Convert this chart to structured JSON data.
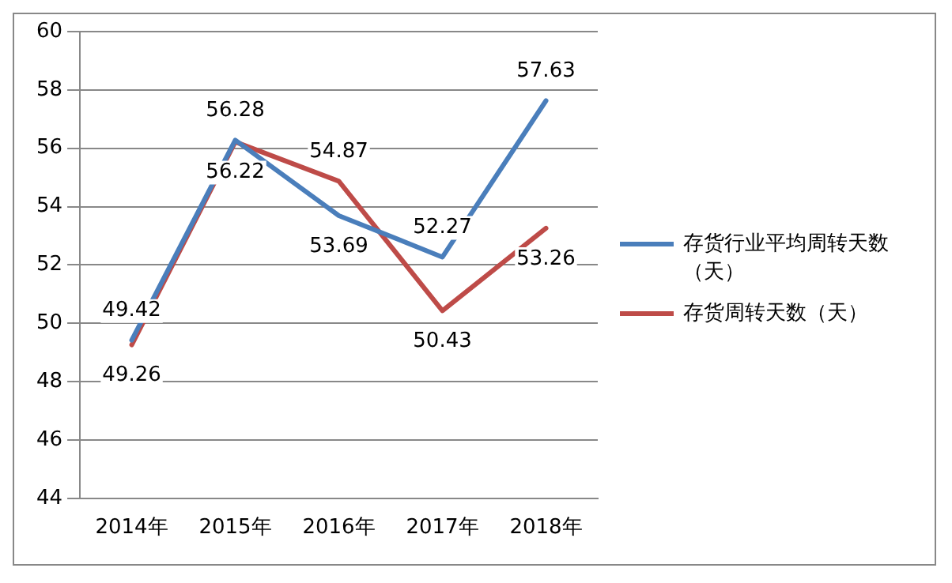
{
  "chart_data": {
    "type": "line",
    "categories": [
      "2014年",
      "2015年",
      "2016年",
      "2017年",
      "2018年"
    ],
    "series": [
      {
        "name": "存货行业平均周转天数（天）",
        "color": "#4a7ebb",
        "values": [
          49.42,
          56.28,
          53.69,
          52.27,
          57.63
        ]
      },
      {
        "name": "存货周转天数（天）",
        "color": "#be4b48",
        "values": [
          49.26,
          56.22,
          54.87,
          50.43,
          53.26
        ]
      }
    ],
    "ylim": [
      44,
      60
    ],
    "yticks": [
      44,
      46,
      48,
      50,
      52,
      54,
      56,
      58,
      60
    ],
    "grid": "y",
    "legend": "right",
    "data_labels": true,
    "marker": "none",
    "line_style": "solid"
  }
}
